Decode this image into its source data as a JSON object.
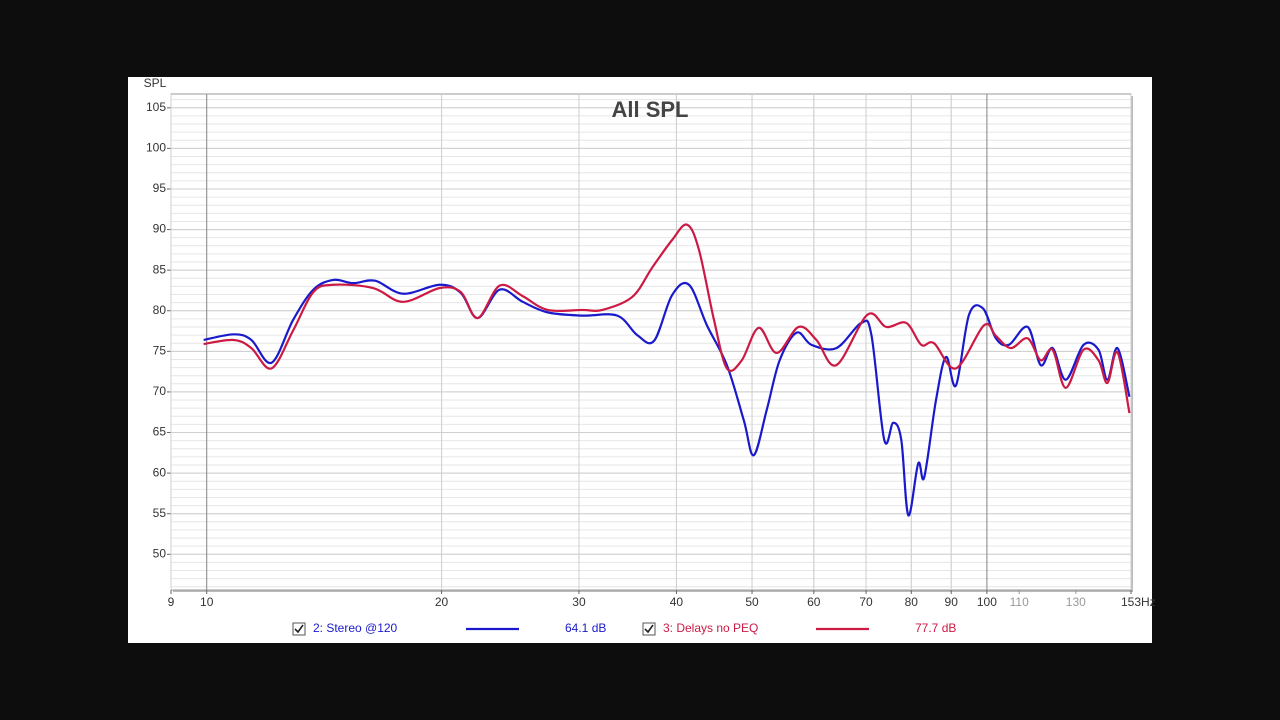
{
  "chart_data": {
    "type": "line",
    "title": "All SPL",
    "y_label": "SPL",
    "x_unit": "Hz",
    "log_x": true,
    "grid": true,
    "xlim": [
      9,
      153
    ],
    "ylim": [
      45.6,
      106.7
    ],
    "yticks": [
      50,
      55,
      60,
      65,
      70,
      75,
      80,
      85,
      90,
      95,
      100,
      105
    ],
    "xticks": [
      9,
      10,
      20,
      30,
      40,
      50,
      60,
      70,
      80,
      90,
      100,
      153
    ],
    "xticks_minor": [
      110,
      130
    ],
    "series": [
      {
        "name": "2: Stereo @120",
        "color": "#1a1acc",
        "level_label": "64.1 dB",
        "x": [
          9.91,
          10.83,
          11.41,
          12.11,
          12.91,
          13.7,
          14.53,
          15.41,
          16.44,
          17.85,
          19.9,
          21.17,
          22.25,
          23.74,
          25.41,
          27.35,
          30.3,
          33.59,
          35.63,
          37.45,
          39.48,
          41.51,
          43.77,
          46.42,
          48.8,
          50.25,
          52.22,
          54.25,
          57.03,
          59.59,
          64.13,
          69.05,
          71.12,
          73.86,
          75.85,
          77.67,
          79.3,
          81.66,
          83.12,
          86.05,
          88.63,
          91.28,
          94.85,
          98.83,
          102.7,
          106.7,
          112.8,
          117.2,
          121.4,
          126.2,
          133.0,
          139.0,
          142.7,
          147.0,
          152.3
        ],
        "values": [
          76.4,
          77.1,
          76.4,
          73.6,
          78.9,
          82.6,
          83.8,
          83.4,
          83.7,
          82.1,
          83.2,
          82.2,
          79.1,
          82.6,
          81.1,
          79.8,
          79.4,
          79.4,
          77.0,
          76.3,
          81.9,
          83.2,
          78.2,
          73.3,
          66.5,
          62.2,
          67.8,
          73.9,
          77.3,
          75.8,
          75.4,
          78.5,
          77.0,
          64.1,
          66.2,
          64.1,
          54.8,
          61.2,
          59.5,
          69.0,
          74.3,
          70.8,
          79.5,
          80.3,
          76.6,
          75.8,
          78.0,
          73.3,
          75.4,
          71.5,
          75.8,
          75.2,
          71.5,
          75.4,
          69.4
        ]
      },
      {
        "name": "3: Delays no PEQ",
        "color": "#cc1a44",
        "level_label": "77.7 dB",
        "x": [
          9.91,
          10.83,
          11.41,
          12.11,
          12.91,
          13.7,
          14.53,
          16.34,
          17.85,
          19.9,
          21.17,
          22.25,
          23.74,
          25.41,
          27.35,
          30.3,
          32.14,
          35.11,
          37.23,
          39.48,
          41.27,
          42.75,
          44.68,
          46.42,
          48.51,
          50.99,
          53.77,
          57.36,
          60.47,
          64.13,
          70.28,
          74.3,
          78.82,
          82.39,
          85.54,
          91.28,
          99.13,
          102.7,
          107.3,
          112.8,
          117.2,
          121.4,
          126.2,
          133.0,
          139.0,
          142.7,
          147.0,
          152.3
        ],
        "values": [
          75.9,
          76.4,
          75.4,
          72.9,
          77.6,
          82.3,
          83.2,
          82.8,
          81.1,
          82.8,
          82.3,
          79.1,
          83.1,
          81.8,
          80.1,
          80.1,
          80.1,
          81.7,
          85.3,
          88.7,
          90.6,
          87.5,
          78.9,
          72.9,
          73.9,
          77.9,
          74.8,
          78.0,
          76.4,
          73.3,
          79.5,
          78.0,
          78.5,
          75.8,
          76.0,
          72.9,
          78.2,
          76.9,
          75.4,
          76.6,
          73.9,
          75.2,
          70.5,
          75.2,
          73.9,
          71.1,
          74.9,
          67.4
        ]
      }
    ]
  }
}
